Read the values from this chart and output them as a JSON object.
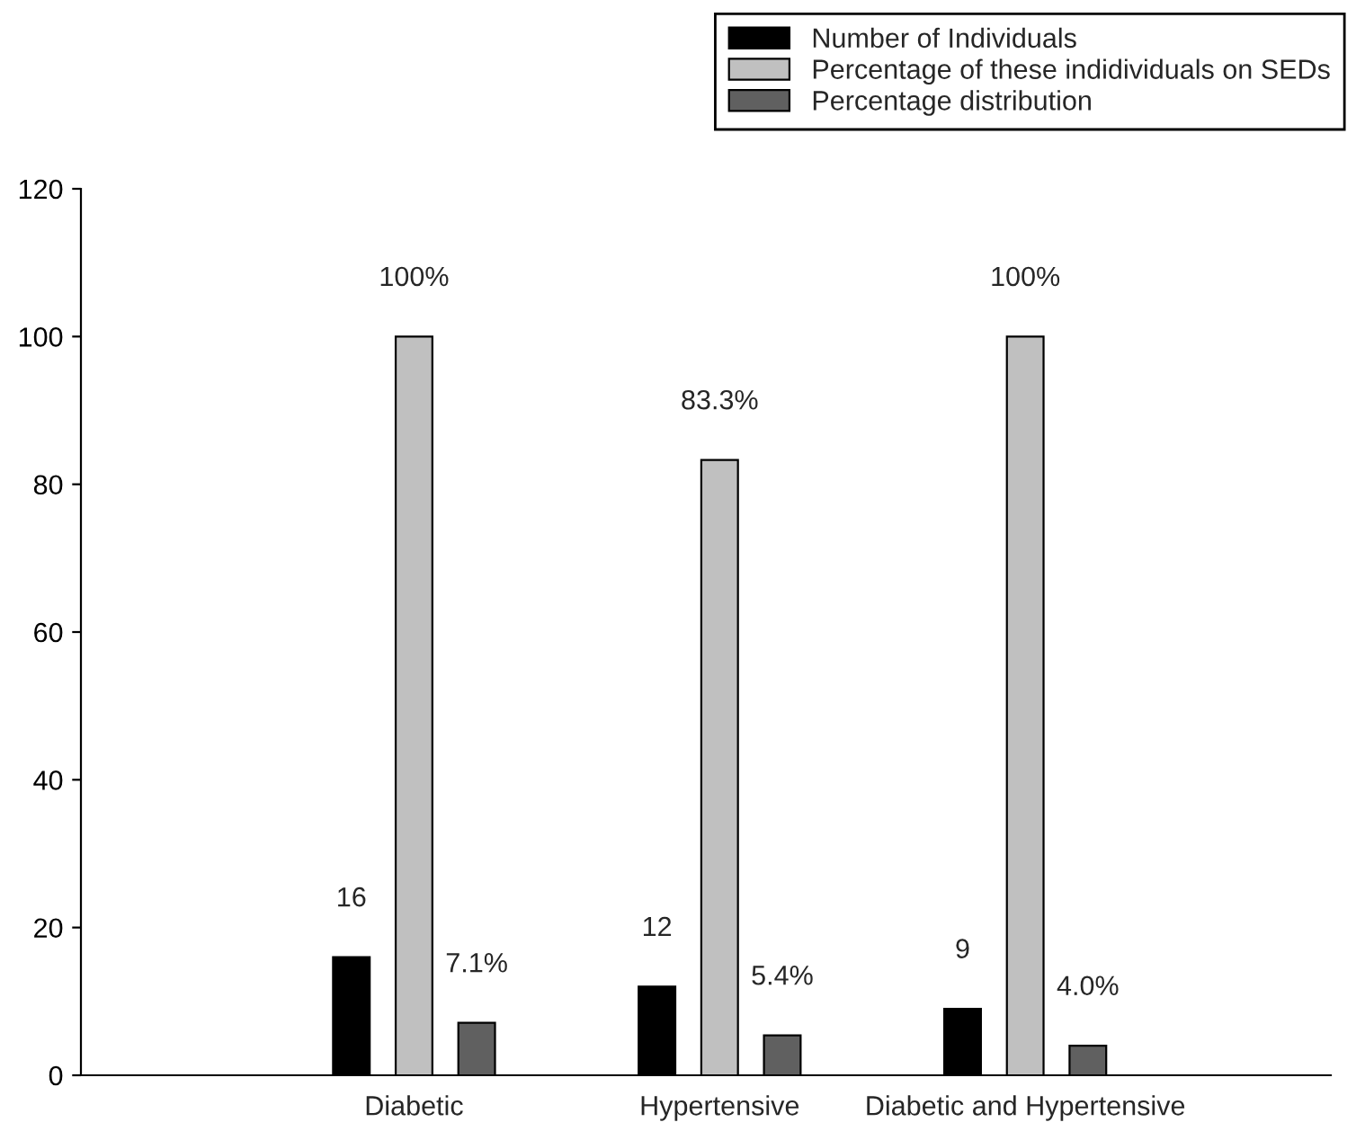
{
  "chart_data": {
    "type": "bar",
    "categories": [
      "Diabetic",
      "Hypertensive",
      "Diabetic and Hypertensive"
    ],
    "series": [
      {
        "name": "Number of Individuals",
        "color": "#000000",
        "values": [
          16,
          12,
          9
        ],
        "value_labels": [
          "16",
          "12",
          "9"
        ]
      },
      {
        "name": "Percentage of these indidividuals on SEDs",
        "color": "#c0c0c0",
        "values": [
          100,
          83.3,
          100
        ],
        "value_labels": [
          "100%",
          "83.3%",
          "100%"
        ]
      },
      {
        "name": "Percentage distribution",
        "color": "#606060",
        "values": [
          7.1,
          5.4,
          4.0
        ],
        "value_labels": [
          "7.1%",
          "5.4%",
          "4.0%"
        ]
      }
    ],
    "ylim": [
      0,
      120
    ],
    "yticks": [
      0,
      20,
      40,
      60,
      80,
      100,
      120
    ],
    "grid": false,
    "legend": "top right"
  }
}
